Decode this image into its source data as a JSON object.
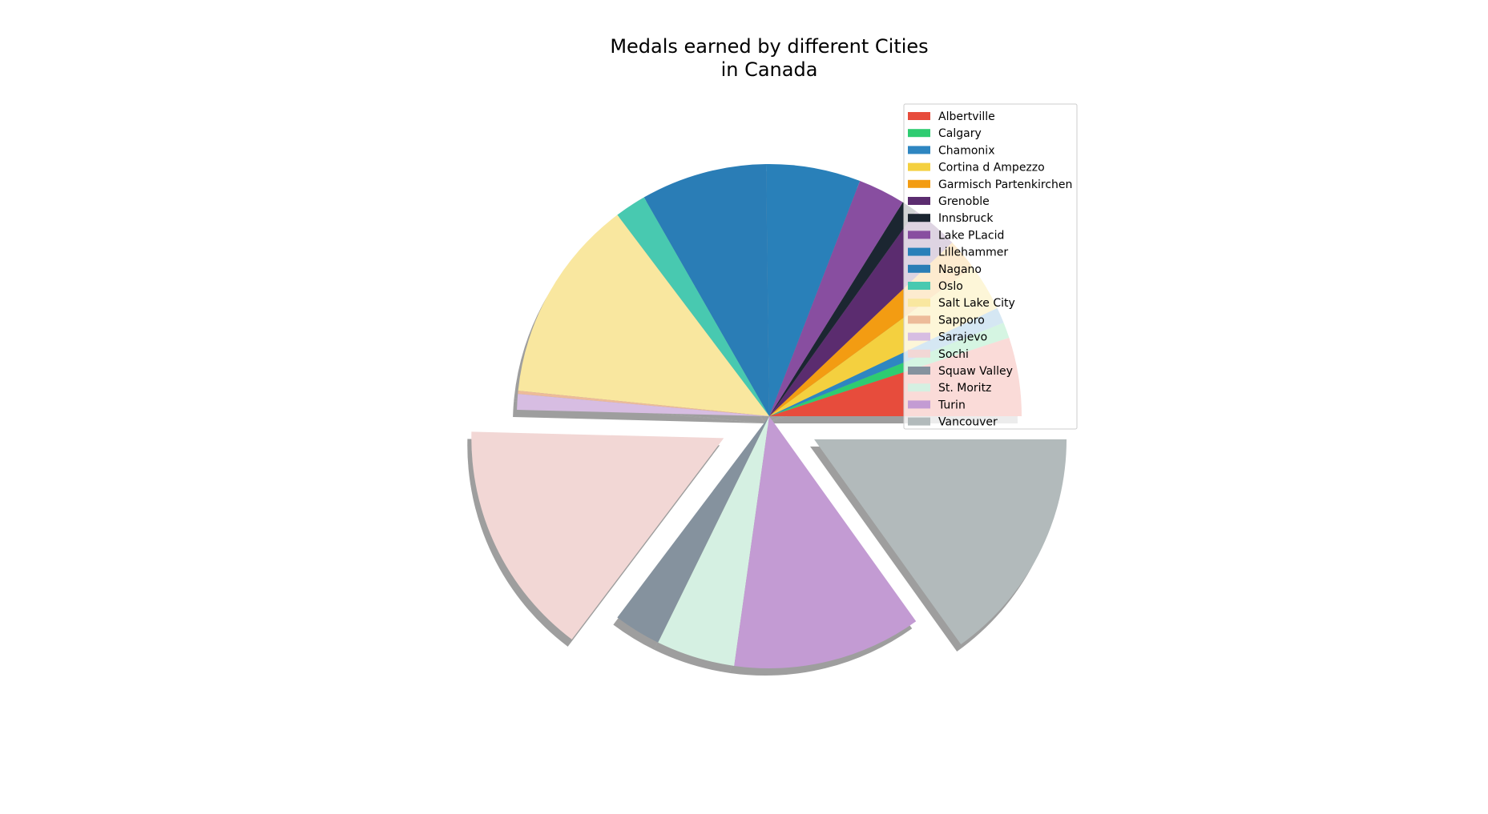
{
  "chart_data": {
    "type": "pie",
    "title_lines": [
      "Medals earned by different Cities",
      "in Canada"
    ],
    "legend_position": "upper right",
    "shadow": true,
    "start_angle_deg": 0,
    "direction": "counterclockwise",
    "slices": [
      {
        "label": "Albertville",
        "value": 5,
        "color": "#e74c3c",
        "explode": 0
      },
      {
        "label": "Calgary",
        "value": 1,
        "color": "#2ecc71",
        "explode": 0
      },
      {
        "label": "Chamonix",
        "value": 1,
        "color": "#2e86c1",
        "explode": 0
      },
      {
        "label": "Cortina d Ampezzo",
        "value": 3,
        "color": "#f4d03f",
        "explode": 0
      },
      {
        "label": "Garmisch Partenkirchen",
        "value": 2,
        "color": "#f39c12",
        "explode": 0
      },
      {
        "label": "Grenoble",
        "value": 3,
        "color": "#5b2c6f",
        "explode": 0
      },
      {
        "label": "Innsbruck",
        "value": 1,
        "color": "#1b2631",
        "explode": 0
      },
      {
        "label": "Lake PLacid",
        "value": 3,
        "color": "#884ea0",
        "explode": 0
      },
      {
        "label": "Lillehammer",
        "value": 6,
        "color": "#2980b9",
        "explode": 0
      },
      {
        "label": "Nagano",
        "value": 8,
        "color": "#2a7db6",
        "explode": 0
      },
      {
        "label": "Oslo",
        "value": 2,
        "color": "#48c9b0",
        "explode": 0
      },
      {
        "label": "Salt Lake City",
        "value": 13,
        "color": "#f9e79f",
        "explode": 0
      },
      {
        "label": "Sapporo",
        "value": 0.2,
        "color": "#edbb99",
        "explode": 0
      },
      {
        "label": "Sarajevo",
        "value": 1,
        "color": "#d7bde2",
        "explode": 0
      },
      {
        "label": "Sochi",
        "value": 15,
        "color": "#f2d7d5",
        "explode": 0.2
      },
      {
        "label": "Squaw Valley",
        "value": 3,
        "color": "#85929e",
        "explode": 0
      },
      {
        "label": "St. Moritz",
        "value": 5,
        "color": "#d5f0e2",
        "explode": 0
      },
      {
        "label": "Turin",
        "value": 12,
        "color": "#c39bd3",
        "explode": 0
      },
      {
        "label": "Vancouver",
        "value": 15,
        "color": "#b2babb",
        "explode": 0.2
      }
    ]
  }
}
